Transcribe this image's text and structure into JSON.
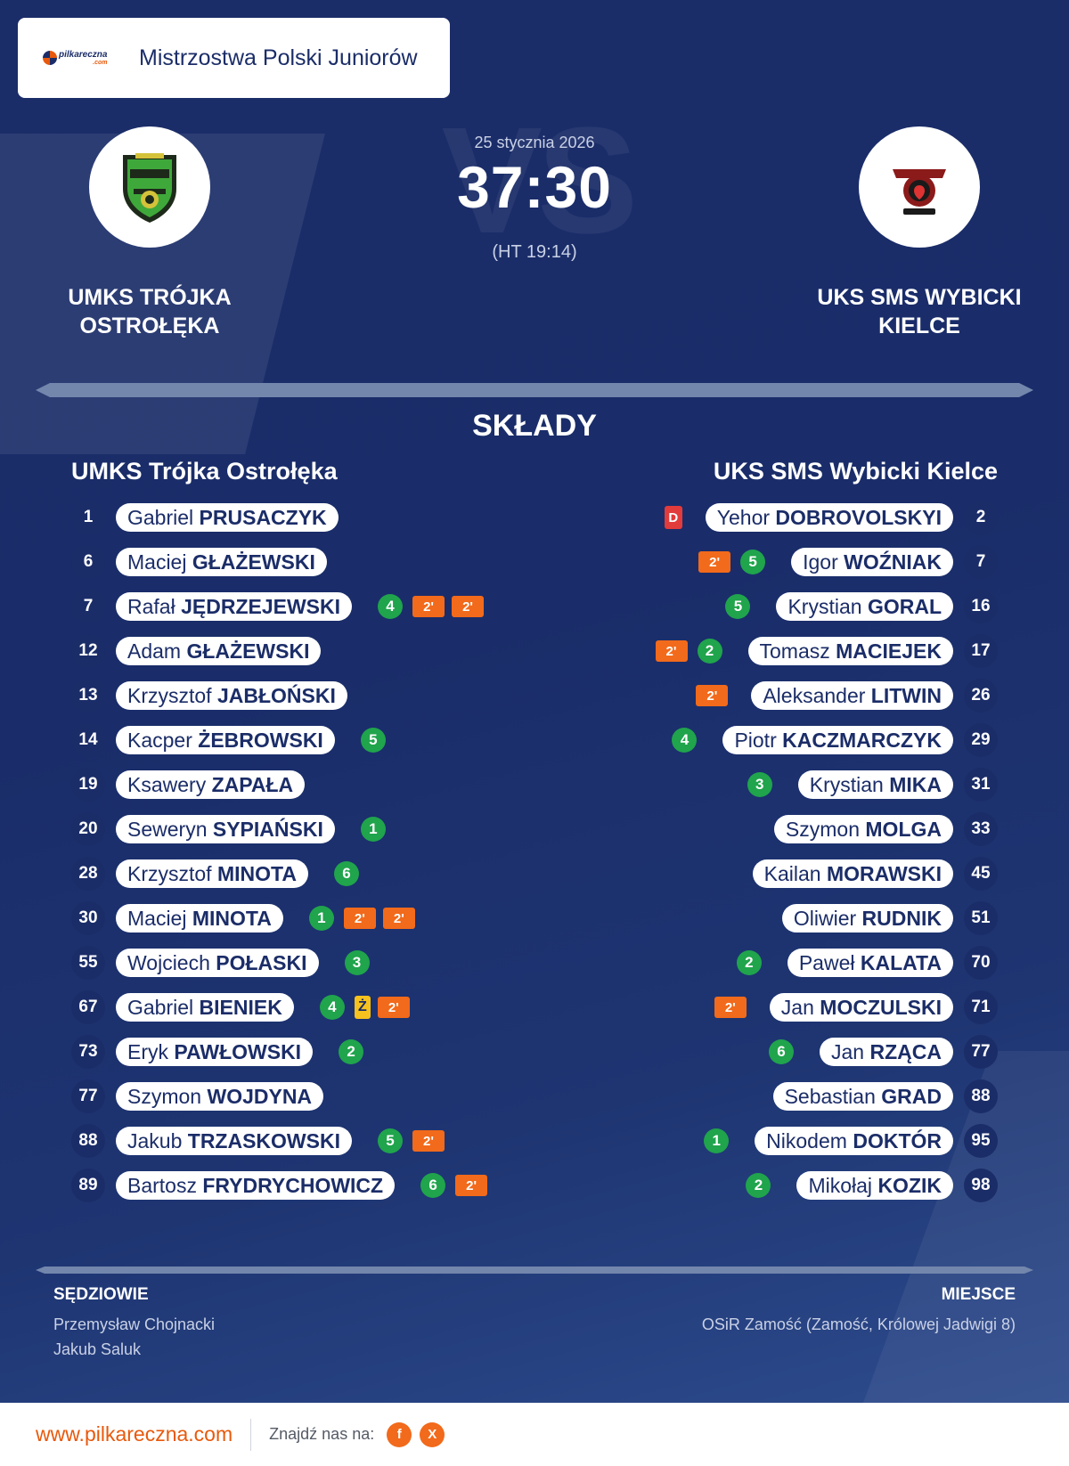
{
  "header": {
    "competition": "Mistrzostwa Polski Juniorów",
    "logo_text": "pilkareczna",
    "logo_sub": ".com"
  },
  "match": {
    "date": "25 stycznia 2026",
    "score": "37:30",
    "halftime": "(HT 19:14)",
    "vs_watermark": "VS",
    "home_team": "UMKS TRÓJKA\nOSTROŁĘKA",
    "away_team": "UKS SMS WYBICKI\nKIELCE"
  },
  "lineups": {
    "title": "SKŁADY",
    "home_title": "UMKS Trójka Ostrołęka",
    "away_title": "UKS SMS Wybicki Kielce",
    "home": [
      {
        "num": "1",
        "first": "Gabriel",
        "last": "PRUSACZYK",
        "goals": "",
        "yellow": "",
        "red": "",
        "susp": []
      },
      {
        "num": "6",
        "first": "Maciej",
        "last": "GŁAŻEWSKI",
        "goals": "",
        "yellow": "",
        "red": "",
        "susp": []
      },
      {
        "num": "7",
        "first": "Rafał",
        "last": "JĘDRZEJEWSKI",
        "goals": "4",
        "yellow": "",
        "red": "",
        "susp": [
          "2'",
          "2'"
        ]
      },
      {
        "num": "12",
        "first": "Adam",
        "last": "GŁAŻEWSKI",
        "goals": "",
        "yellow": "",
        "red": "",
        "susp": []
      },
      {
        "num": "13",
        "first": "Krzysztof",
        "last": "JABŁOŃSKI",
        "goals": "",
        "yellow": "",
        "red": "",
        "susp": []
      },
      {
        "num": "14",
        "first": "Kacper",
        "last": "ŻEBROWSKI",
        "goals": "5",
        "yellow": "",
        "red": "",
        "susp": []
      },
      {
        "num": "19",
        "first": "Ksawery",
        "last": "ZAPAŁA",
        "goals": "",
        "yellow": "",
        "red": "",
        "susp": []
      },
      {
        "num": "20",
        "first": "Seweryn",
        "last": "SYPIAŃSKI",
        "goals": "1",
        "yellow": "",
        "red": "",
        "susp": []
      },
      {
        "num": "28",
        "first": "Krzysztof",
        "last": "MINOTA",
        "goals": "6",
        "yellow": "",
        "red": "",
        "susp": []
      },
      {
        "num": "30",
        "first": "Maciej",
        "last": "MINOTA",
        "goals": "1",
        "yellow": "",
        "red": "",
        "susp": [
          "2'",
          "2'"
        ]
      },
      {
        "num": "55",
        "first": "Wojciech",
        "last": "POŁASKI",
        "goals": "3",
        "yellow": "",
        "red": "",
        "susp": []
      },
      {
        "num": "67",
        "first": "Gabriel",
        "last": "BIENIEK",
        "goals": "4",
        "yellow": "Ż",
        "red": "",
        "susp": [
          "2'"
        ]
      },
      {
        "num": "73",
        "first": "Eryk",
        "last": "PAWŁOWSKI",
        "goals": "2",
        "yellow": "",
        "red": "",
        "susp": []
      },
      {
        "num": "77",
        "first": "Szymon",
        "last": "WOJDYNA",
        "goals": "",
        "yellow": "",
        "red": "",
        "susp": []
      },
      {
        "num": "88",
        "first": "Jakub",
        "last": "TRZASKOWSKI",
        "goals": "5",
        "yellow": "",
        "red": "",
        "susp": [
          "2'"
        ]
      },
      {
        "num": "89",
        "first": "Bartosz",
        "last": "FRYDRYCHOWICZ",
        "goals": "6",
        "yellow": "",
        "red": "",
        "susp": [
          "2'"
        ]
      }
    ],
    "away": [
      {
        "num": "2",
        "first": "Yehor",
        "last": "DOBROVOLSKYI",
        "goals": "",
        "yellow": "",
        "red": "D",
        "susp": []
      },
      {
        "num": "7",
        "first": "Igor",
        "last": "WOŹNIAK",
        "goals": "5",
        "yellow": "",
        "red": "",
        "susp": [
          "2'"
        ]
      },
      {
        "num": "16",
        "first": "Krystian",
        "last": "GORAL",
        "goals": "5",
        "yellow": "",
        "red": "",
        "susp": []
      },
      {
        "num": "17",
        "first": "Tomasz",
        "last": "MACIEJEK",
        "goals": "2",
        "yellow": "",
        "red": "",
        "susp": [
          "2'"
        ]
      },
      {
        "num": "26",
        "first": "Aleksander",
        "last": "LITWIN",
        "goals": "",
        "yellow": "",
        "red": "",
        "susp": [
          "2'"
        ]
      },
      {
        "num": "29",
        "first": "Piotr",
        "last": "KACZMARCZYK",
        "goals": "4",
        "yellow": "",
        "red": "",
        "susp": []
      },
      {
        "num": "31",
        "first": "Krystian",
        "last": "MIKA",
        "goals": "3",
        "yellow": "",
        "red": "",
        "susp": []
      },
      {
        "num": "33",
        "first": "Szymon",
        "last": "MOLGA",
        "goals": "",
        "yellow": "",
        "red": "",
        "susp": []
      },
      {
        "num": "45",
        "first": "Kailan",
        "last": "MORAWSKI",
        "goals": "",
        "yellow": "",
        "red": "",
        "susp": []
      },
      {
        "num": "51",
        "first": "Oliwier",
        "last": "RUDNIK",
        "goals": "",
        "yellow": "",
        "red": "",
        "susp": []
      },
      {
        "num": "70",
        "first": "Paweł",
        "last": "KALATA",
        "goals": "2",
        "yellow": "",
        "red": "",
        "susp": []
      },
      {
        "num": "71",
        "first": "Jan",
        "last": "MOCZULSKI",
        "goals": "",
        "yellow": "",
        "red": "",
        "susp": [
          "2'"
        ]
      },
      {
        "num": "77",
        "first": "Jan",
        "last": "RZĄCA",
        "goals": "6",
        "yellow": "",
        "red": "",
        "susp": []
      },
      {
        "num": "88",
        "first": "Sebastian",
        "last": "GRAD",
        "goals": "",
        "yellow": "",
        "red": "",
        "susp": []
      },
      {
        "num": "95",
        "first": "Nikodem",
        "last": "DOKTÓR",
        "goals": "1",
        "yellow": "",
        "red": "",
        "susp": []
      },
      {
        "num": "98",
        "first": "Mikołaj",
        "last": "KOZIK",
        "goals": "2",
        "yellow": "",
        "red": "",
        "susp": []
      }
    ]
  },
  "officials": {
    "label": "SĘDZIOWIE",
    "names": [
      "Przemysław Chojnacki",
      "Jakub Saluk"
    ]
  },
  "venue": {
    "label": "MIEJSCE",
    "value": "OSiR Zamość (Zamość, Królowej Jadwigi 8)"
  },
  "footer": {
    "url": "www.pilkareczna.com",
    "find_us": "Znajdź nas na:",
    "social": [
      {
        "glyph": "f",
        "icon": "facebook-icon"
      },
      {
        "glyph": "X",
        "icon": "x-icon"
      }
    ]
  },
  "colors": {
    "navy": "#1b2d68",
    "goal": "#20a44c",
    "suspension": "#f26a1b",
    "yellow_card": "#f7c21e",
    "red_card": "#e23b3b",
    "brand_orange": "#e8590c"
  }
}
